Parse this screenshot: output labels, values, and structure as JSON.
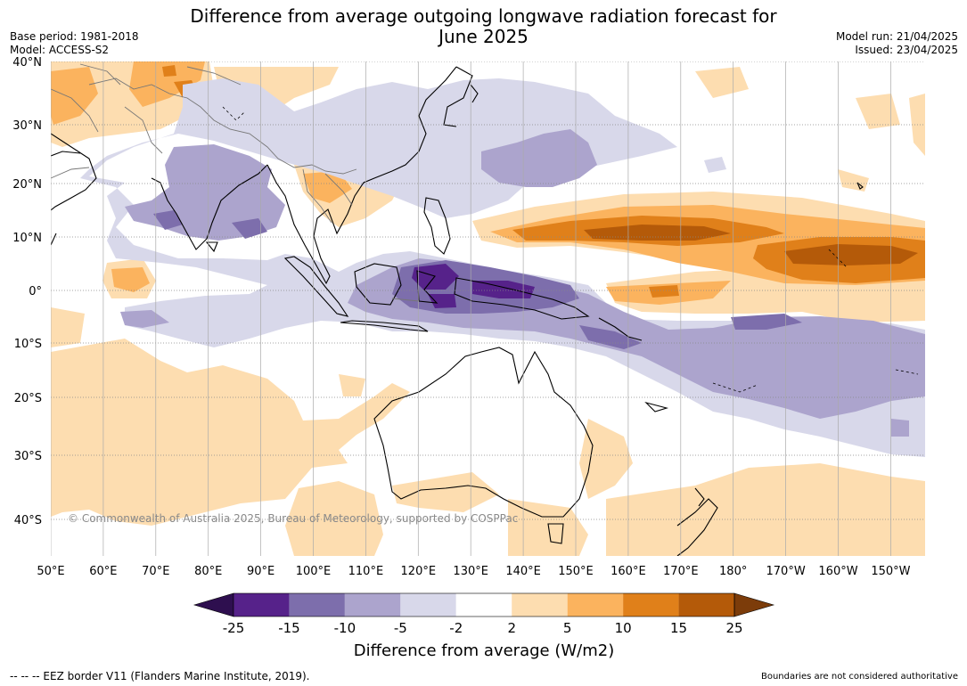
{
  "header": {
    "title_line1": "Difference from average outgoing longwave radiation forecast for",
    "title_line2": "June 2025",
    "base_period": "Base period: 1981-2018",
    "model": "Model: ACCESS-S2",
    "model_run": "Model run: 21/04/2025",
    "issued": "Issued: 23/04/2025"
  },
  "map": {
    "lat_labels": [
      "40°N",
      "30°N",
      "20°N",
      "10°N",
      "0°",
      "10°S",
      "20°S",
      "30°S",
      "40°S"
    ],
    "lon_labels": [
      "50°E",
      "60°E",
      "70°E",
      "80°E",
      "90°E",
      "100°E",
      "110°E",
      "120°E",
      "130°E",
      "140°E",
      "150°E",
      "160°E",
      "170°E",
      "180°",
      "170°W",
      "160°W",
      "150°W"
    ],
    "copyright": "© Commonwealth of Australia 2025, Bureau of Meteorology, supported by COSPPac",
    "colors": {
      "land_outline": "#000000",
      "border": "#777777",
      "grid": "#888888"
    }
  },
  "colorbar": {
    "title": "Difference from average (W/m2)",
    "labels": [
      "-25",
      "-15",
      "-10",
      "-5",
      "-2",
      "2",
      "5",
      "10",
      "15",
      "25"
    ],
    "colors": [
      "#2e0f4f",
      "#56228a",
      "#7d6eac",
      "#aca4cd",
      "#d8d8ea",
      "#ffffff",
      "#fdddb0",
      "#fbb35e",
      "#e0801a",
      "#b45a09",
      "#7c3c0a"
    ]
  },
  "footer": {
    "eez": "--  --  -- EEZ border V11 (Flanders Marine Institute, 2019).",
    "disclaimer": "Boundaries are not considered authoritative"
  }
}
